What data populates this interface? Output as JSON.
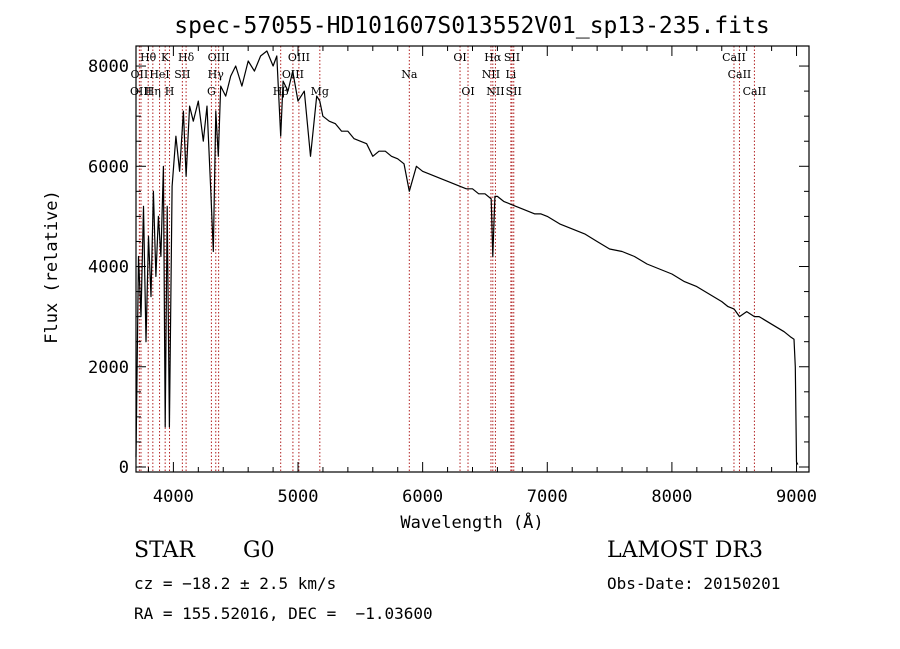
{
  "chart_data": {
    "type": "line",
    "title": "spec-57055-HD101607S013552V01_sp13-235.fits",
    "xlabel": "Wavelength (Å)",
    "ylabel": "Flux (relative)",
    "xlim": [
      3700,
      9100
    ],
    "ylim": [
      -100,
      8400
    ],
    "x_ticks": [
      4000,
      5000,
      6000,
      7000,
      8000,
      9000
    ],
    "y_ticks": [
      0,
      2000,
      4000,
      6000,
      8000
    ],
    "series": [
      {
        "name": "flux",
        "x": [
          3700,
          3720,
          3740,
          3760,
          3780,
          3800,
          3820,
          3840,
          3860,
          3880,
          3900,
          3920,
          3934,
          3950,
          3968,
          3990,
          4020,
          4050,
          4080,
          4102,
          4130,
          4160,
          4200,
          4240,
          4270,
          4300,
          4320,
          4340,
          4360,
          4380,
          4420,
          4460,
          4500,
          4550,
          4600,
          4650,
          4700,
          4750,
          4800,
          4830,
          4861,
          4880,
          4920,
          4957,
          5000,
          5050,
          5100,
          5150,
          5175,
          5200,
          5250,
          5300,
          5350,
          5400,
          5450,
          5500,
          5550,
          5600,
          5650,
          5700,
          5750,
          5800,
          5850,
          5893,
          5950,
          6000,
          6050,
          6100,
          6150,
          6200,
          6250,
          6300,
          6350,
          6400,
          6450,
          6500,
          6550,
          6563,
          6580,
          6600,
          6650,
          6700,
          6750,
          6800,
          6850,
          6900,
          6950,
          7000,
          7100,
          7200,
          7300,
          7400,
          7500,
          7600,
          7700,
          7800,
          7900,
          8000,
          8100,
          8200,
          8300,
          8400,
          8450,
          8500,
          8542,
          8600,
          8662,
          8700,
          8800,
          8900,
          8950,
          8980,
          8990,
          9000,
          9010
        ],
        "y": [
          200,
          4200,
          3000,
          5200,
          2500,
          4600,
          3400,
          5500,
          3800,
          5000,
          4200,
          6000,
          800,
          5200,
          800,
          5600,
          6600,
          5900,
          7100,
          5800,
          7200,
          6900,
          7300,
          6500,
          7200,
          5500,
          4300,
          7100,
          6200,
          7600,
          7400,
          7800,
          8000,
          7600,
          8100,
          7900,
          8200,
          8300,
          8000,
          8200,
          6600,
          7700,
          7500,
          7900,
          7300,
          7500,
          6200,
          7400,
          7300,
          7000,
          6900,
          6850,
          6700,
          6700,
          6550,
          6500,
          6450,
          6200,
          6300,
          6300,
          6200,
          6150,
          6050,
          5500,
          6000,
          5900,
          5850,
          5800,
          5750,
          5700,
          5650,
          5600,
          5550,
          5550,
          5450,
          5450,
          5350,
          4200,
          5400,
          5400,
          5300,
          5250,
          5200,
          5150,
          5100,
          5050,
          5050,
          5000,
          4850,
          4750,
          4650,
          4500,
          4350,
          4300,
          4200,
          4050,
          3950,
          3850,
          3700,
          3600,
          3450,
          3300,
          3200,
          3150,
          3000,
          3100,
          3000,
          3000,
          2850,
          2700,
          2600,
          2550,
          2000,
          100,
          50
        ]
      }
    ],
    "spectral_lines": [
      {
        "label": "Hθ",
        "wavelength": 3798,
        "row": 1
      },
      {
        "label": "OII",
        "wavelength": 3727,
        "row": 2
      },
      {
        "label": "OIII",
        "wavelength": 3740,
        "row": 3
      },
      {
        "label": "K",
        "wavelength": 3934,
        "row": 1
      },
      {
        "label": "HeI",
        "wavelength": 3889,
        "row": 2
      },
      {
        "label": "Hη",
        "wavelength": 3835,
        "row": 3
      },
      {
        "label": "H",
        "wavelength": 3969,
        "row": 3
      },
      {
        "label": "Hδ",
        "wavelength": 4102,
        "row": 1
      },
      {
        "label": "SII",
        "wavelength": 4072,
        "row": 2
      },
      {
        "label": "OIII",
        "wavelength": 4363,
        "row": 1
      },
      {
        "label": "Hγ",
        "wavelength": 4340,
        "row": 2
      },
      {
        "label": "G",
        "wavelength": 4305,
        "row": 3
      },
      {
        "label": "OIII",
        "wavelength": 5007,
        "row": 1
      },
      {
        "label": "OIII",
        "wavelength": 4959,
        "row": 2
      },
      {
        "label": "Hβ",
        "wavelength": 4861,
        "row": 3
      },
      {
        "label": "Mg",
        "wavelength": 5175,
        "row": 3
      },
      {
        "label": "Na",
        "wavelength": 5893,
        "row": 2
      },
      {
        "label": "OI",
        "wavelength": 6300,
        "row": 1
      },
      {
        "label": "OI",
        "wavelength": 6364,
        "row": 3
      },
      {
        "label": "Hα",
        "wavelength": 6563,
        "row": 1
      },
      {
        "label": "NII",
        "wavelength": 6548,
        "row": 2
      },
      {
        "label": "NII",
        "wavelength": 6584,
        "row": 3
      },
      {
        "label": "SII",
        "wavelength": 6717,
        "row": 1
      },
      {
        "label": "Li",
        "wavelength": 6708,
        "row": 2
      },
      {
        "label": "SII",
        "wavelength": 6731,
        "row": 3
      },
      {
        "label": "CaII",
        "wavelength": 8498,
        "row": 1
      },
      {
        "label": "CaII",
        "wavelength": 8542,
        "row": 2
      },
      {
        "label": "CaII",
        "wavelength": 8662,
        "row": 3
      }
    ]
  },
  "info": {
    "class": "STAR",
    "subclass": "G0",
    "survey": "LAMOST DR3",
    "cz": "cz = −18.2 ± 2.5 km/s",
    "obs_date": "Obs-Date: 20150201",
    "coords": "RA = 155.52016, DEC =  −1.03600"
  },
  "colors": {
    "spectrum": "#000000",
    "line_marker": "#b22222"
  }
}
